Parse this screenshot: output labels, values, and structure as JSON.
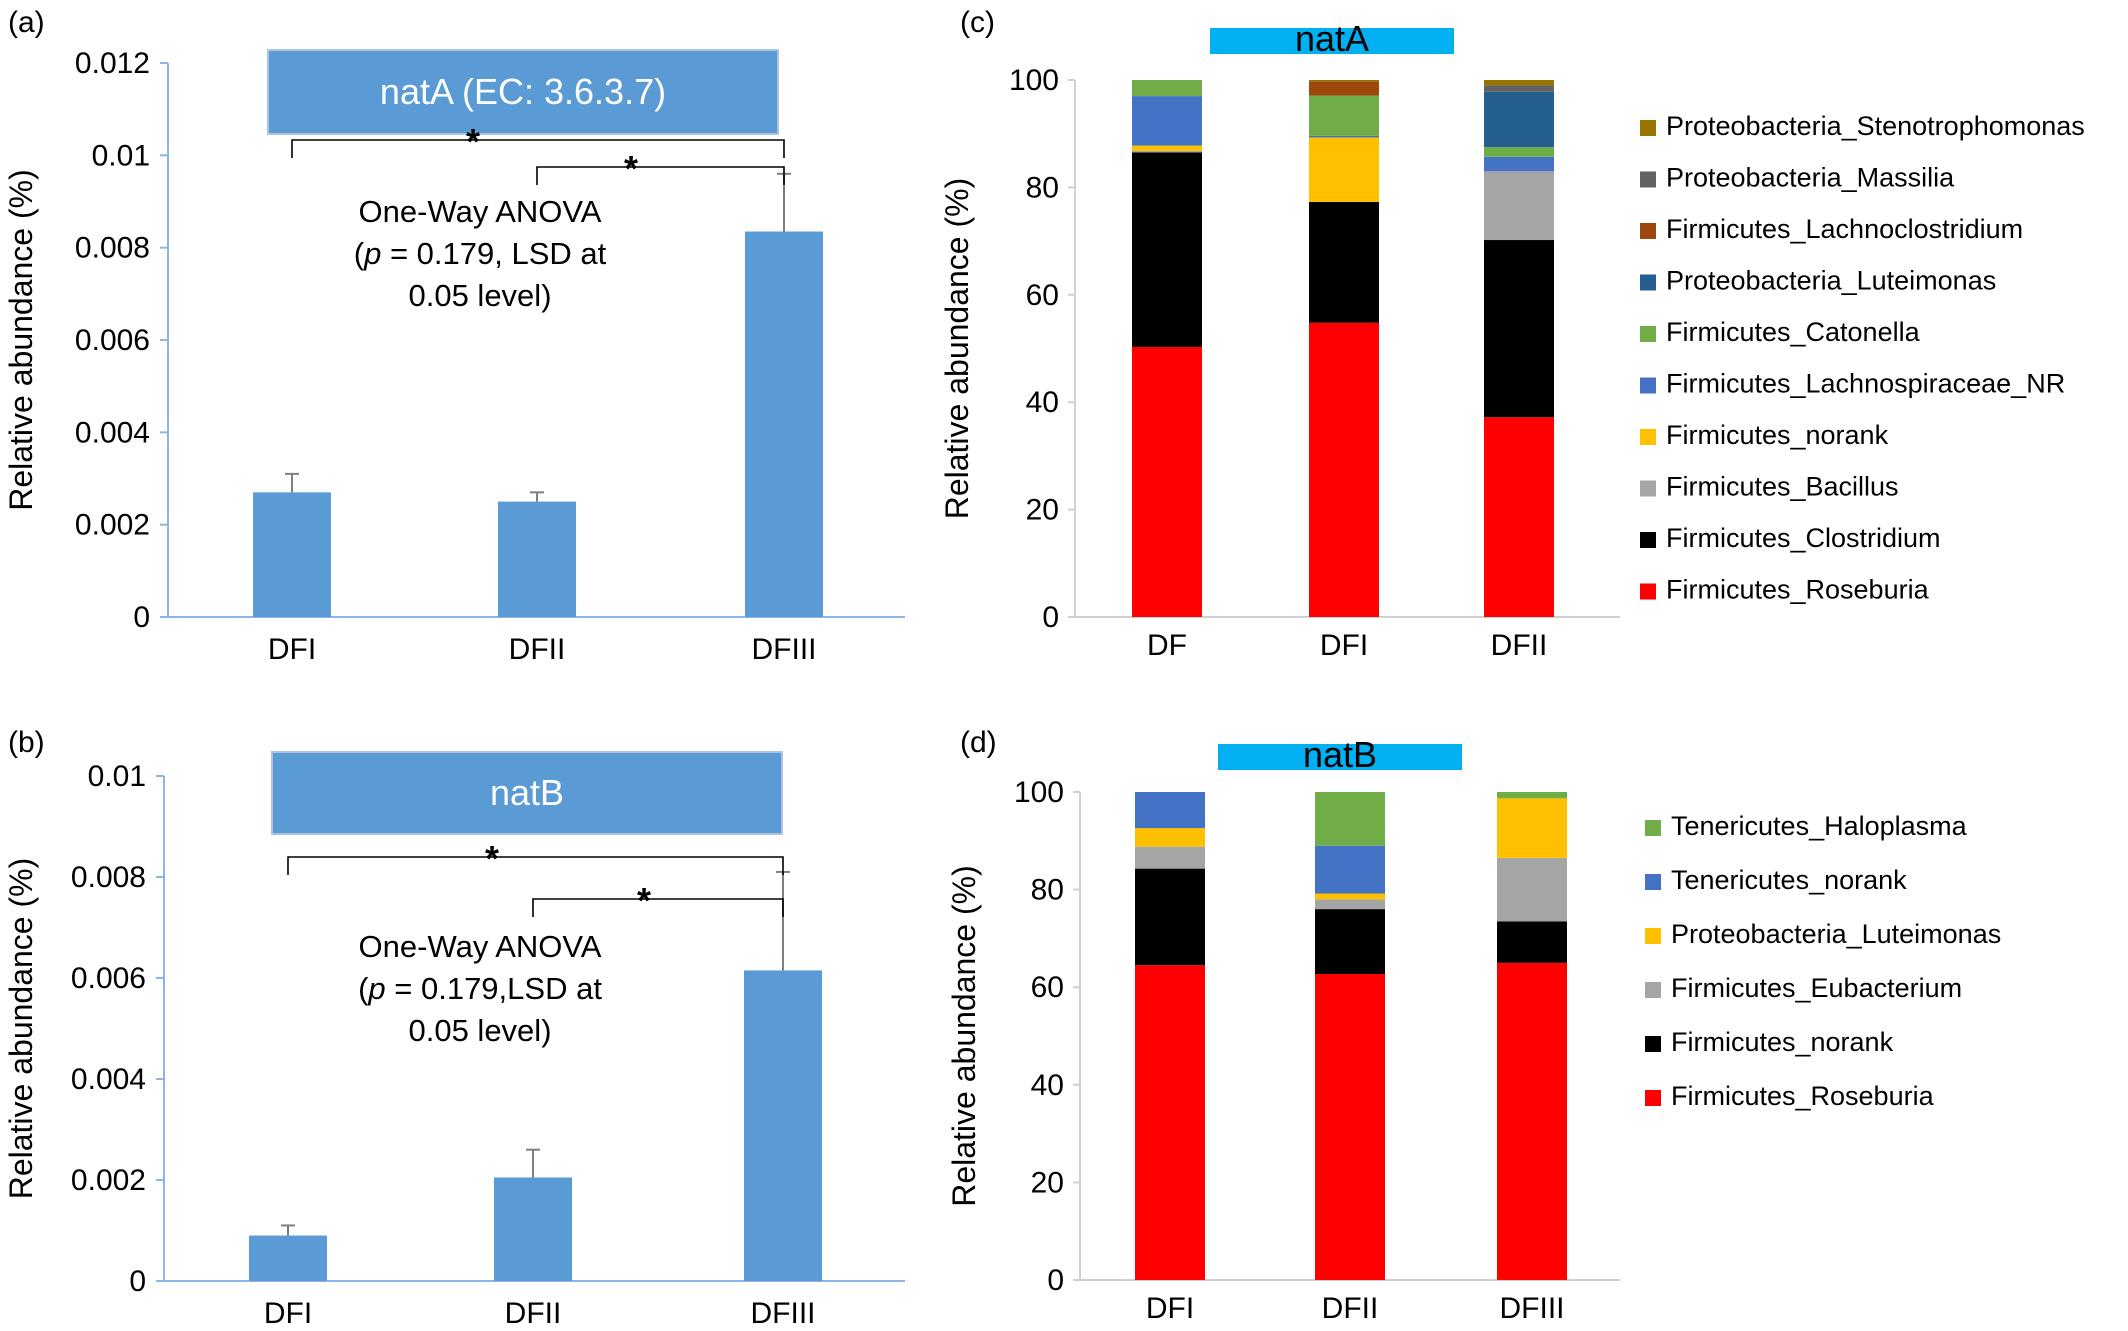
{
  "chart_data": [
    {
      "panel": "(a)",
      "type": "bar",
      "title": "natA (EC: 3.6.3.7)",
      "ylabel": "Relative abundance (%)",
      "categories": [
        "DFI",
        "DFII",
        "DFIII"
      ],
      "values": [
        0.0027,
        0.0025,
        0.00835
      ],
      "errors": [
        0.0004,
        0.0002,
        0.00125
      ],
      "ylim": [
        0,
        0.012
      ],
      "yticks": [
        "0",
        "0.002",
        "0.004",
        "0.006",
        "0.008",
        "0.01",
        "0.012"
      ],
      "bar_color": "#5b9bd5",
      "title_box_color": "#5b9bd5",
      "annotation": [
        "One-Way ANOVA",
        "(",
        "p",
        " = 0.179, LSD at",
        "0.05 level)"
      ],
      "significance": [
        {
          "from": "DFI",
          "to": "DFIII",
          "label": "*"
        },
        {
          "from": "DFII",
          "to": "DFIII",
          "label": "*"
        }
      ]
    },
    {
      "panel": "(b)",
      "type": "bar",
      "title": "natB",
      "ylabel": "Relative abundance (%)",
      "categories": [
        "DFI",
        "DFII",
        "DFIII"
      ],
      "values": [
        0.0009,
        0.00205,
        0.00615
      ],
      "errors": [
        0.0002,
        0.00055,
        0.00195
      ],
      "ylim": [
        0,
        0.01
      ],
      "yticks": [
        "0",
        "0.002",
        "0.004",
        "0.006",
        "0.008",
        "0.01"
      ],
      "bar_color": "#5b9bd5",
      "title_box_color": "#5b9bd5",
      "annotation": [
        "One-Way ANOVA",
        "(",
        "p",
        " = 0.179,LSD at",
        "0.05 level)"
      ],
      "significance": [
        {
          "from": "DFI",
          "to": "DFIII",
          "label": "*"
        },
        {
          "from": "DFII",
          "to": "DFIII",
          "label": "*"
        }
      ]
    },
    {
      "panel": "(c)",
      "type": "bar",
      "stacked": true,
      "title": "natA",
      "ylabel": "Relative abundance (%)",
      "categories": [
        "DF",
        "DFI",
        "DFII"
      ],
      "ylim": [
        0,
        100
      ],
      "yticks": [
        "0",
        "20",
        "40",
        "60",
        "80",
        "100"
      ],
      "title_box_color": "#00b0f0",
      "series": [
        {
          "name": "Firmicutes_Roseburia",
          "color": "#ff0000",
          "values": [
            50.3,
            54.8,
            37.2
          ]
        },
        {
          "name": "Firmicutes_Clostridium",
          "color": "#000000",
          "values": [
            36.2,
            22.5,
            33.0
          ]
        },
        {
          "name": "Firmicutes_Bacillus",
          "color": "#a5a5a5",
          "values": [
            0.3,
            0,
            12.8
          ]
        },
        {
          "name": "Firmicutes_norank",
          "color": "#ffc000",
          "values": [
            1.0,
            12.0,
            0
          ]
        },
        {
          "name": "Firmicutes_Lachnospiraceae_NR",
          "color": "#4472c4",
          "values": [
            9.2,
            0.3,
            2.7
          ]
        },
        {
          "name": "Firmicutes_Catonella",
          "color": "#70ad47",
          "values": [
            3.0,
            7.5,
            1.8
          ]
        },
        {
          "name": "Proteobacteria_Luteimonas",
          "color": "#255e91",
          "values": [
            0,
            0,
            10.3
          ]
        },
        {
          "name": "Firmicutes_Lachnoclostridium",
          "color": "#9e480e",
          "values": [
            0,
            2.6,
            0
          ]
        },
        {
          "name": "Proteobacteria_Massilia",
          "color": "#636363",
          "values": [
            0,
            0,
            1.2
          ]
        },
        {
          "name": "Proteobacteria_Stenotrophomonas",
          "color": "#997300",
          "values": [
            0,
            0.3,
            1.0
          ]
        }
      ]
    },
    {
      "panel": "(d)",
      "type": "bar",
      "stacked": true,
      "title": "natB",
      "ylabel": "Relative abundance (%)",
      "categories": [
        "DFI",
        "DFII",
        "DFIII"
      ],
      "ylim": [
        0,
        100
      ],
      "yticks": [
        "0",
        "20",
        "40",
        "60",
        "80",
        "100"
      ],
      "title_box_color": "#00b0f0",
      "series": [
        {
          "name": "Firmicutes_Roseburia",
          "color": "#ff0000",
          "values": [
            64.5,
            62.7,
            65.0
          ]
        },
        {
          "name": "Firmicutes_norank",
          "color": "#000000",
          "values": [
            19.8,
            13.3,
            8.5
          ]
        },
        {
          "name": "Firmicutes_Eubacterium",
          "color": "#a5a5a5",
          "values": [
            4.5,
            2.0,
            13.0
          ]
        },
        {
          "name": "Proteobacteria_Luteimonas",
          "color": "#ffc000",
          "values": [
            3.8,
            1.2,
            12.2
          ]
        },
        {
          "name": "Tenericutes_norank",
          "color": "#4472c4",
          "values": [
            7.4,
            9.8,
            0
          ]
        },
        {
          "name": "Tenericutes_Haloplasma",
          "color": "#70ad47",
          "values": [
            0,
            11.0,
            1.3
          ]
        }
      ]
    }
  ]
}
